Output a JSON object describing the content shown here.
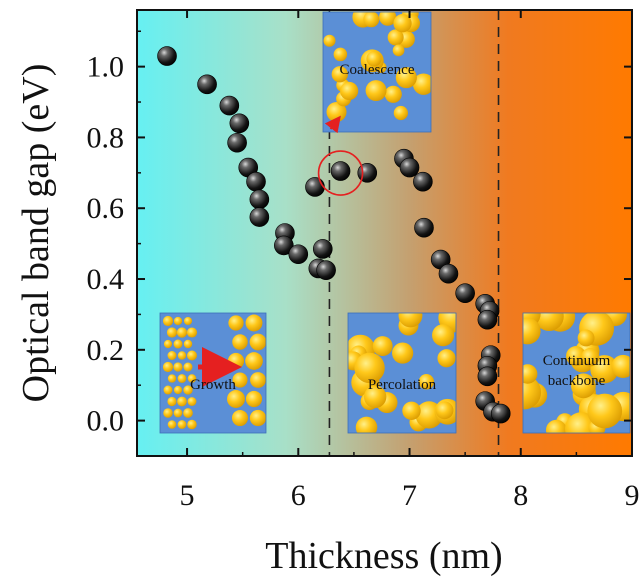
{
  "chart_data": {
    "type": "scatter",
    "title": "",
    "xlabel": "Thickness (nm)",
    "ylabel": "Optical band gap (eV)",
    "xlim": [
      4.55,
      9.0
    ],
    "ylim": [
      -0.1,
      1.16
    ],
    "xticks": [
      "5",
      "6",
      "7",
      "8",
      "9"
    ],
    "yticks": [
      "0.0",
      "0.2",
      "0.4",
      "0.6",
      "0.8",
      "1.0"
    ],
    "grid": false,
    "legend": "none",
    "background_gradient": [
      "#66f0f2",
      "#a8e0c8",
      "#c4a070",
      "#f07a20",
      "#ff7a00"
    ],
    "marker_color": "#1a1a1a",
    "dashed_lines_x": [
      6.28,
      7.8
    ],
    "highlight_circle": {
      "x": 6.38,
      "y": 0.705
    },
    "insets": [
      {
        "label": "Growth",
        "position": "bottom-left"
      },
      {
        "label": "Coalescence",
        "position": "top-center"
      },
      {
        "label": "Percolation",
        "position": "bottom-center"
      },
      {
        "label": "Continuum backbone",
        "position": "bottom-right"
      }
    ],
    "series": [
      {
        "points": [
          [
            4.82,
            1.03
          ],
          [
            5.18,
            0.95
          ],
          [
            5.38,
            0.89
          ],
          [
            5.47,
            0.84
          ],
          [
            5.45,
            0.785
          ],
          [
            5.55,
            0.715
          ],
          [
            5.62,
            0.675
          ],
          [
            5.65,
            0.625
          ],
          [
            5.65,
            0.575
          ],
          [
            5.88,
            0.53
          ],
          [
            5.87,
            0.495
          ],
          [
            6.0,
            0.47
          ],
          [
            6.18,
            0.43
          ],
          [
            6.22,
            0.485
          ],
          [
            6.25,
            0.425
          ],
          [
            6.15,
            0.66
          ],
          [
            6.38,
            0.705
          ],
          [
            6.62,
            0.7
          ],
          [
            6.95,
            0.74
          ],
          [
            7.0,
            0.715
          ],
          [
            7.12,
            0.675
          ],
          [
            7.13,
            0.545
          ],
          [
            7.28,
            0.455
          ],
          [
            7.35,
            0.415
          ],
          [
            7.5,
            0.36
          ],
          [
            7.68,
            0.33
          ],
          [
            7.72,
            0.31
          ],
          [
            7.7,
            0.285
          ],
          [
            7.73,
            0.185
          ],
          [
            7.7,
            0.155
          ],
          [
            7.7,
            0.125
          ],
          [
            7.68,
            0.055
          ],
          [
            7.75,
            0.025
          ],
          [
            7.82,
            0.02
          ]
        ]
      }
    ]
  }
}
